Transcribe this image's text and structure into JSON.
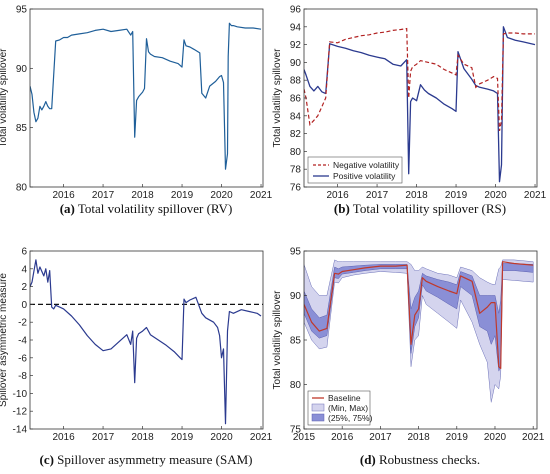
{
  "chart_data": [
    {
      "id": "a",
      "type": "line",
      "caption_letter": "(a)",
      "caption_text": "Total volatility spillover (RV)",
      "ylabel": "Total volatility spillover",
      "xlim": [
        2015.15,
        2021.05
      ],
      "ylim": [
        80,
        95
      ],
      "xticks": [
        2016,
        2017,
        2018,
        2019,
        2020,
        2021
      ],
      "yticks": [
        80,
        85,
        90,
        95
      ],
      "colors": {
        "series": "#1f5f99"
      },
      "series": [
        {
          "name": "",
          "x": [
            2015.15,
            2015.2,
            2015.25,
            2015.3,
            2015.35,
            2015.4,
            2015.45,
            2015.5,
            2015.55,
            2015.6,
            2015.65,
            2015.7,
            2015.8,
            2015.9,
            2016.0,
            2016.1,
            2016.2,
            2016.4,
            2016.6,
            2016.8,
            2017.0,
            2017.2,
            2017.4,
            2017.6,
            2017.7,
            2017.75,
            2017.8,
            2017.85,
            2017.9,
            2017.95,
            2018.0,
            2018.05,
            2018.1,
            2018.15,
            2018.2,
            2018.3,
            2018.5,
            2018.7,
            2018.9,
            2019.0,
            2019.05,
            2019.1,
            2019.2,
            2019.3,
            2019.45,
            2019.5,
            2019.6,
            2019.7,
            2019.85,
            2019.95,
            2020.0,
            2020.05,
            2020.1,
            2020.15,
            2020.17,
            2020.2,
            2020.25,
            2020.3,
            2020.4,
            2020.6,
            2020.8,
            2021.0
          ],
          "y": [
            88.5,
            87.8,
            86.3,
            85.5,
            85.8,
            86.8,
            86.5,
            86.8,
            87.2,
            86.8,
            86.6,
            86.6,
            92.3,
            92.4,
            92.6,
            92.6,
            92.8,
            92.9,
            93.0,
            93.2,
            93.3,
            93.1,
            93.2,
            93.3,
            92.8,
            93.1,
            84.2,
            87.3,
            87.6,
            87.8,
            88.0,
            88.3,
            92.5,
            91.4,
            91.2,
            91.0,
            90.9,
            90.6,
            90.4,
            90.1,
            92.4,
            91.9,
            91.8,
            91.6,
            91.3,
            87.9,
            87.5,
            88.5,
            88.9,
            89.3,
            89.4,
            88.8,
            81.5,
            82.8,
            91.0,
            93.8,
            93.6,
            93.6,
            93.5,
            93.4,
            93.4,
            93.3
          ]
        }
      ]
    },
    {
      "id": "b",
      "type": "line",
      "caption_letter": "(b)",
      "caption_text": "Total volatility spillover (RS)",
      "ylabel": "Total volatility spillover",
      "xlim": [
        2015.15,
        2021.05
      ],
      "ylim": [
        76,
        96
      ],
      "xticks": [
        2016,
        2017,
        2018,
        2019,
        2020,
        2021
      ],
      "yticks": [
        76,
        78,
        80,
        82,
        84,
        86,
        88,
        90,
        92,
        94,
        96
      ],
      "legend": {
        "position": "lower-left",
        "entries": [
          "Negative volatility",
          "Positive volatility"
        ]
      },
      "colors": {
        "negative": "#b22222",
        "positive": "#2b3a8f"
      },
      "series": [
        {
          "name": "Negative volatility",
          "style": "dashed",
          "x": [
            2015.15,
            2015.2,
            2015.3,
            2015.4,
            2015.5,
            2015.6,
            2015.65,
            2015.7,
            2015.8,
            2016.0,
            2016.2,
            2016.4,
            2016.6,
            2016.8,
            2017.0,
            2017.2,
            2017.4,
            2017.6,
            2017.75,
            2017.8,
            2017.85,
            2017.9,
            2018.0,
            2018.1,
            2018.3,
            2018.5,
            2018.7,
            2018.9,
            2019.0,
            2019.05,
            2019.2,
            2019.4,
            2019.5,
            2019.6,
            2019.8,
            2019.95,
            2020.05,
            2020.1,
            2020.15,
            2020.2,
            2020.3,
            2020.5,
            2020.7,
            2021.0
          ],
          "y": [
            87.0,
            86.0,
            83.0,
            83.5,
            84.0,
            85.0,
            85.5,
            86.0,
            92.3,
            92.2,
            92.6,
            92.8,
            93.0,
            93.1,
            93.3,
            93.4,
            93.6,
            93.7,
            93.8,
            86.0,
            89.0,
            89.5,
            89.8,
            90.2,
            90.0,
            89.8,
            89.2,
            88.8,
            88.6,
            90.8,
            89.8,
            89.4,
            87.2,
            87.6,
            88.0,
            88.4,
            88.2,
            82.3,
            83.5,
            93.2,
            93.3,
            93.3,
            93.2,
            93.2
          ]
        },
        {
          "name": "Positive volatility",
          "style": "solid",
          "x": [
            2015.15,
            2015.2,
            2015.3,
            2015.4,
            2015.5,
            2015.6,
            2015.7,
            2015.8,
            2016.0,
            2016.2,
            2016.4,
            2016.6,
            2016.8,
            2017.0,
            2017.2,
            2017.4,
            2017.6,
            2017.75,
            2017.8,
            2017.85,
            2017.9,
            2018.0,
            2018.1,
            2018.2,
            2018.3,
            2018.5,
            2018.7,
            2018.9,
            2019.0,
            2019.05,
            2019.2,
            2019.4,
            2019.5,
            2019.6,
            2019.8,
            2019.95,
            2020.05,
            2020.1,
            2020.15,
            2020.2,
            2020.3,
            2020.5,
            2020.7,
            2021.0
          ],
          "y": [
            89.2,
            88.6,
            87.3,
            86.8,
            87.3,
            86.7,
            86.5,
            92.1,
            91.8,
            91.6,
            91.3,
            91.1,
            90.8,
            90.6,
            90.4,
            89.8,
            89.6,
            90.3,
            77.5,
            85.6,
            86.0,
            85.7,
            87.5,
            86.9,
            86.5,
            86.0,
            85.3,
            84.8,
            84.5,
            91.2,
            89.3,
            88.1,
            87.4,
            87.2,
            87.0,
            86.8,
            86.5,
            76.6,
            78.5,
            94.0,
            92.8,
            92.5,
            92.3,
            92.0
          ]
        }
      ]
    },
    {
      "id": "c",
      "type": "line",
      "caption_letter": "(c)",
      "caption_text": "Spillover asymmetry measure (SAM)",
      "ylabel": "Spillover asymmetric measure",
      "xlim": [
        2015.15,
        2021.05
      ],
      "ylim": [
        -14,
        6
      ],
      "xticks": [
        2016,
        2017,
        2018,
        2019,
        2020,
        2021
      ],
      "yticks": [
        -14,
        -12,
        -10,
        -8,
        -6,
        -4,
        -2,
        0,
        2,
        4,
        6
      ],
      "reference_line": {
        "y": 0,
        "style": "dashed"
      },
      "colors": {
        "series": "#2b3a8f"
      },
      "series": [
        {
          "name": "",
          "x": [
            2015.15,
            2015.2,
            2015.3,
            2015.35,
            2015.4,
            2015.5,
            2015.55,
            2015.6,
            2015.65,
            2015.7,
            2015.75,
            2015.8,
            2015.9,
            2016.0,
            2016.2,
            2016.4,
            2016.6,
            2016.8,
            2017.0,
            2017.2,
            2017.4,
            2017.6,
            2017.7,
            2017.75,
            2017.8,
            2017.85,
            2017.9,
            2018.0,
            2018.1,
            2018.2,
            2018.4,
            2018.6,
            2018.8,
            2018.95,
            2019.0,
            2019.05,
            2019.1,
            2019.2,
            2019.35,
            2019.5,
            2019.6,
            2019.8,
            2019.9,
            2019.95,
            2020.0,
            2020.05,
            2020.1,
            2020.15,
            2020.2,
            2020.3,
            2020.5,
            2020.7,
            2020.9,
            2021.0
          ],
          "y": [
            2.0,
            2.5,
            5.0,
            3.5,
            4.2,
            3.2,
            4.0,
            2.5,
            3.8,
            -0.3,
            -0.5,
            -0.1,
            -0.3,
            -0.5,
            -1.3,
            -2.3,
            -3.5,
            -4.5,
            -5.2,
            -5.0,
            -4.2,
            -3.4,
            -4.5,
            -3.0,
            -8.8,
            -3.8,
            -3.3,
            -3.0,
            -2.6,
            -3.4,
            -4.0,
            -4.6,
            -5.3,
            -6.0,
            -6.2,
            0.6,
            0.2,
            0.5,
            0.8,
            -1.0,
            -1.5,
            -2.0,
            -2.6,
            -3.5,
            -6.0,
            -5.0,
            -13.4,
            -3.0,
            -0.8,
            -1.0,
            -0.6,
            -0.8,
            -1.0,
            -1.3
          ]
        }
      ]
    },
    {
      "id": "d",
      "type": "area",
      "caption_letter": "(d)",
      "caption_text": "Robustness checks.",
      "ylabel": "Total volatility spillover",
      "xlim": [
        2015.0,
        2021.1
      ],
      "ylim": [
        75,
        95
      ],
      "xticks": [
        2015,
        2016,
        2017,
        2018,
        2019,
        2020,
        2021
      ],
      "yticks": [
        75,
        80,
        85,
        90,
        95
      ],
      "legend": {
        "position": "lower-left",
        "entries": [
          "Baseline",
          "(Min, Max)",
          "(25%, 75%)"
        ]
      },
      "colors": {
        "baseline": "#c0392b",
        "minmax": "#d4d4ee",
        "iqr": "#8a8fd6"
      },
      "x": [
        2015.0,
        2015.2,
        2015.4,
        2015.6,
        2015.8,
        2015.9,
        2016.0,
        2016.3,
        2016.6,
        2017.0,
        2017.4,
        2017.7,
        2017.8,
        2017.9,
        2018.0,
        2018.1,
        2018.2,
        2018.5,
        2018.8,
        2019.0,
        2019.1,
        2019.4,
        2019.6,
        2019.8,
        2019.9,
        2020.0,
        2020.1,
        2020.15,
        2020.2,
        2020.5,
        2021.0
      ],
      "series": [
        {
          "name": "Baseline",
          "values": [
            89.0,
            87.0,
            86.0,
            86.3,
            92.5,
            92.4,
            92.7,
            92.9,
            93.1,
            93.3,
            93.3,
            93.4,
            84.5,
            87.8,
            88.5,
            92.0,
            91.6,
            91.0,
            90.5,
            90.2,
            92.2,
            91.6,
            88.0,
            88.7,
            89.2,
            89.2,
            82.0,
            81.8,
            93.8,
            93.6,
            93.4
          ]
        },
        {
          "name": "(Min, Max) low",
          "values": [
            87.0,
            85.0,
            84.0,
            84.2,
            91.5,
            91.4,
            92.0,
            92.3,
            92.5,
            92.7,
            92.6,
            92.5,
            82.0,
            85.0,
            85.5,
            90.0,
            89.0,
            88.0,
            87.0,
            86.3,
            89.5,
            87.0,
            84.5,
            82.5,
            78.0,
            80.0,
            79.5,
            81.0,
            91.8,
            91.7,
            91.5
          ]
        },
        {
          "name": "(Min, Max) high",
          "values": [
            93.5,
            91.0,
            90.0,
            90.0,
            94.0,
            93.8,
            93.8,
            93.8,
            93.8,
            93.8,
            93.8,
            93.8,
            93.5,
            92.8,
            92.8,
            93.2,
            93.0,
            92.5,
            92.3,
            92.0,
            93.2,
            92.8,
            92.0,
            91.5,
            91.3,
            91.2,
            93.0,
            93.2,
            94.0,
            94.0,
            93.8
          ]
        },
        {
          "name": "(25%, 75%) low",
          "values": [
            88.0,
            86.0,
            85.2,
            85.5,
            92.0,
            91.9,
            92.4,
            92.6,
            92.8,
            93.0,
            93.0,
            93.0,
            83.5,
            86.5,
            87.5,
            91.2,
            90.5,
            89.8,
            89.0,
            88.5,
            91.0,
            90.0,
            86.5,
            86.0,
            84.5,
            85.5,
            81.5,
            82.0,
            92.8,
            92.8,
            92.6
          ]
        },
        {
          "name": "(25%, 75%) high",
          "values": [
            90.5,
            88.5,
            87.5,
            87.8,
            93.2,
            93.0,
            93.2,
            93.3,
            93.4,
            93.5,
            93.5,
            93.5,
            88.5,
            89.8,
            90.5,
            92.5,
            92.2,
            91.8,
            91.5,
            91.2,
            92.7,
            92.2,
            90.0,
            90.0,
            90.0,
            90.0,
            88.0,
            89.5,
            93.6,
            93.6,
            93.5
          ]
        }
      ]
    }
  ]
}
